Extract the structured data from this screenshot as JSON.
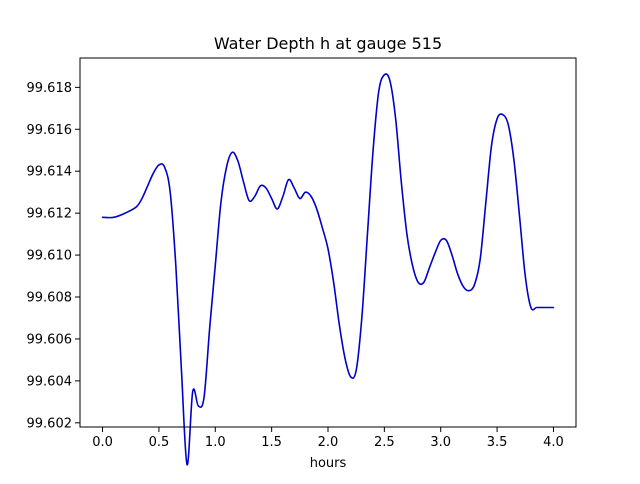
{
  "chart_data": {
    "type": "line",
    "title": "Water Depth h at gauge 515",
    "xlabel": "hours",
    "ylabel": "",
    "xlim": [
      -0.2,
      4.2
    ],
    "ylim": [
      99.6018,
      99.6194
    ],
    "xticks": [
      0.0,
      0.5,
      1.0,
      1.5,
      2.0,
      2.5,
      3.0,
      3.5,
      4.0
    ],
    "xtick_labels": [
      "0.0",
      "0.5",
      "1.0",
      "1.5",
      "2.0",
      "2.5",
      "3.0",
      "3.5",
      "4.0"
    ],
    "yticks": [
      99.602,
      99.604,
      99.606,
      99.608,
      99.61,
      99.612,
      99.614,
      99.616,
      99.618
    ],
    "ytick_labels": [
      "99.602",
      "99.604",
      "99.606",
      "99.608",
      "99.610",
      "99.612",
      "99.614",
      "99.616",
      "99.618"
    ],
    "grid": false,
    "legend": "none",
    "series": [
      {
        "color": "#0000cc",
        "x": [
          0.0,
          0.1,
          0.2,
          0.3,
          0.35,
          0.4,
          0.45,
          0.5,
          0.55,
          0.6,
          0.65,
          0.7,
          0.75,
          0.8,
          0.85,
          0.9,
          0.95,
          1.0,
          1.05,
          1.1,
          1.15,
          1.2,
          1.25,
          1.3,
          1.35,
          1.4,
          1.45,
          1.5,
          1.55,
          1.6,
          1.65,
          1.7,
          1.75,
          1.8,
          1.85,
          1.9,
          1.95,
          2.0,
          2.05,
          2.1,
          2.15,
          2.2,
          2.25,
          2.3,
          2.35,
          2.4,
          2.45,
          2.5,
          2.55,
          2.6,
          2.65,
          2.7,
          2.75,
          2.8,
          2.85,
          2.9,
          2.95,
          3.0,
          3.05,
          3.1,
          3.15,
          3.2,
          3.25,
          3.3,
          3.35,
          3.4,
          3.45,
          3.5,
          3.55,
          3.6,
          3.65,
          3.7,
          3.75,
          3.8,
          3.85,
          3.9,
          3.95,
          4.0
        ],
        "y": [
          99.6118,
          99.6118,
          99.612,
          99.6123,
          99.6127,
          99.6133,
          99.6139,
          99.6143,
          99.6142,
          99.613,
          99.6095,
          99.6045,
          99.6,
          99.6035,
          99.6028,
          99.6032,
          99.6065,
          99.6095,
          99.6125,
          99.6142,
          99.6149,
          99.6145,
          99.6135,
          99.6126,
          99.6128,
          99.6133,
          99.6132,
          99.6127,
          99.6122,
          99.6128,
          99.6136,
          99.6132,
          99.6127,
          99.613,
          99.6128,
          99.6122,
          99.6113,
          99.6103,
          99.6087,
          99.6067,
          99.6051,
          99.6042,
          99.6045,
          99.607,
          99.611,
          99.615,
          99.6178,
          99.6186,
          99.6183,
          99.6165,
          99.6135,
          99.611,
          99.6095,
          99.6087,
          99.6087,
          99.6094,
          99.6101,
          99.6107,
          99.6107,
          99.61,
          99.6091,
          99.6085,
          99.6083,
          99.6086,
          99.6098,
          99.6125,
          99.6152,
          99.6165,
          99.6167,
          99.6162,
          99.6145,
          99.6118,
          99.609,
          99.6075,
          99.6075,
          99.6075,
          99.6075,
          99.6075
        ]
      }
    ]
  }
}
